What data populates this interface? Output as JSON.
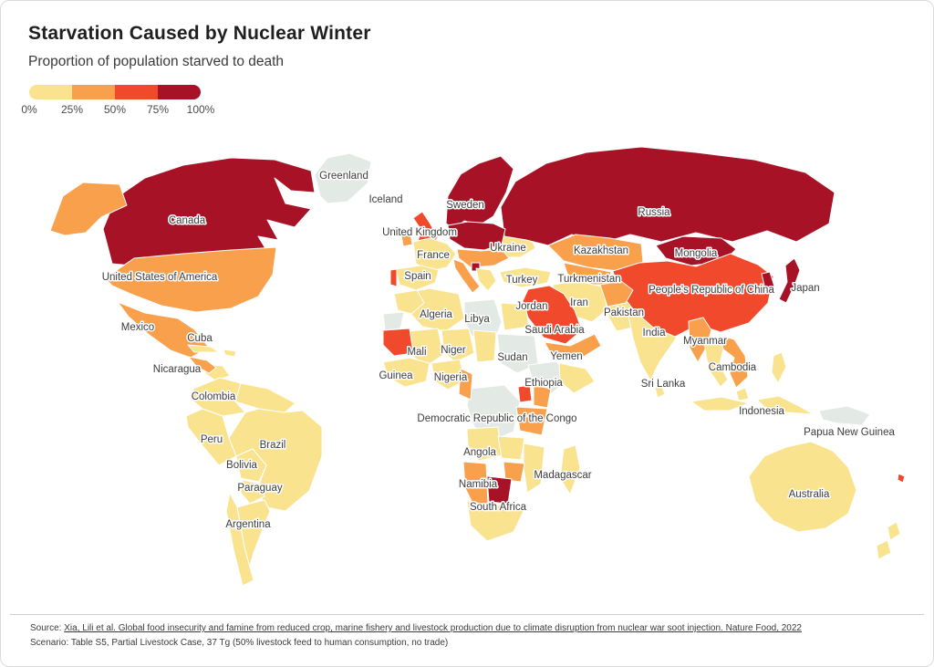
{
  "header": {
    "title": "Starvation Caused by Nuclear Winter",
    "subtitle": "Proportion of population starved to death"
  },
  "legend": {
    "labels": [
      "0%",
      "25%",
      "50%",
      "75%",
      "100%"
    ],
    "colors": [
      "#FAE38F",
      "#F9A04C",
      "#F1492B",
      "#A81226"
    ]
  },
  "footer": {
    "source_prefix": "Source: ",
    "source_link": "Xia, Lili et al. Global food insecurity and famine from reduced crop, marine fishery and livestock production due to climate disruption from nuclear war soot injection. Nature Food, 2022",
    "scenario": "Scenario: Table S5, Partial Livestock Case, 37 Tg (50% livestock feed to human consumption, no trade)"
  },
  "chart_data": {
    "type": "heatmap",
    "subtype": "choropleth-world-map",
    "title": "Starvation Caused by Nuclear Winter",
    "subtitle": "Proportion of population starved to death",
    "unit": "percent of population starved to death",
    "legend_position": "top-left",
    "bins": [
      {
        "range": "0-25%",
        "color": "#FAE38F"
      },
      {
        "range": "25-50%",
        "color": "#F9A04C"
      },
      {
        "range": "50-75%",
        "color": "#F1492B"
      },
      {
        "range": "75-100%",
        "color": "#A81226"
      },
      {
        "range": "no data",
        "color": "#E3EAE5"
      }
    ],
    "countries": [
      {
        "name": "Greenland",
        "bin": "no data",
        "label": [
          376,
          191
        ],
        "polys": [
          "350,214 344,190 358,172 382,167 406,176 402,200 380,220 358,222"
        ]
      },
      {
        "name": "Iceland",
        "bin": "no data",
        "label": [
          422,
          217
        ],
        "polys": []
      },
      {
        "name": "Canada",
        "bin": "75-100%",
        "label": [
          204,
          240
        ],
        "polys": [
          "122,288 112,250 126,216 158,194 200,180 252,172 300,174 340,186 344,210 318,208 300,194 312,222 340,228 322,248 292,240 304,262 282,258 294,278 252,292 208,288 164,292"
        ]
      },
      {
        "name": "United States of America",
        "bin": "25-50%",
        "label": [
          174,
          302
        ],
        "polys": [
          "114,304 146,282 200,277 252,273 302,270 298,300 282,324 252,337 214,341 176,334 142,321 122,312"
        ]
      },
      {
        "name": "Mexico",
        "bin": "25-50%",
        "label": [
          150,
          357
        ],
        "polys": [
          "128,330 158,342 194,348 212,360 228,380 208,391 186,383 160,364 140,346"
        ]
      },
      {
        "name": "Cuba",
        "bin": "0-25%",
        "label": [
          218,
          369
        ],
        "polys": [
          "205,377 230,379 239,385 212,385"
        ]
      },
      {
        "name": "Nicaragua",
        "bin": "0-25%",
        "label": [
          193,
          403
        ],
        "polys": [
          "222,398 243,400 251,411 235,416 224,408"
        ]
      },
      {
        "name": "Colombia",
        "bin": "0-25%",
        "label": [
          233,
          433
        ],
        "polys": [
          "211,425 240,413 263,419 257,439 268,451 243,455 221,447 209,437"
        ]
      },
      {
        "name": "Peru",
        "bin": "0-25%",
        "label": [
          231,
          480
        ],
        "polys": [
          "203,455 221,447 243,455 250,479 258,499 239,509 219,485 205,467"
        ]
      },
      {
        "name": "Brazil",
        "bin": "0-25%",
        "label": [
          298,
          486
        ],
        "polys": [
          "268,451 283,447 311,451 331,449 352,467 352,499 338,537 312,559 291,555 281,535 291,509 276,491 258,499 250,479"
        ]
      },
      {
        "name": "Bolivia",
        "bin": "0-25%",
        "label": [
          264,
          508
        ],
        "polys": [
          "258,499 276,491 291,509 283,527 263,523"
        ]
      },
      {
        "name": "Paraguay",
        "bin": "0-25%",
        "label": [
          284,
          533
        ],
        "polys": [
          "265,525 283,529 289,543 273,551 263,539"
        ]
      },
      {
        "name": "Argentina",
        "bin": "0-25%",
        "label": [
          271,
          573
        ],
        "polys": [
          "259,555 273,551 289,547 295,559 287,579 277,605 269,633 267,599"
        ]
      },
      {
        "name": "Sweden",
        "bin": "75-100%",
        "label": [
          509,
          223
        ],
        "polys": [
          "488,244 490,214 504,190 524,178 548,170 562,184 554,210 540,236 524,246 508,241 498,250"
        ]
      },
      {
        "name": "United Kingdom",
        "bin": "50-75%",
        "label": [
          459,
          253
        ],
        "polys": [
          "452,238 462,231 470,243 479,259 472,271 456,267 461,251"
        ]
      },
      {
        "name": "France",
        "bin": "0-25%",
        "label": [
          474,
          278
        ],
        "polys": [
          "452,264 470,260 489,266 499,277 489,292 470,296 455,288"
        ]
      },
      {
        "name": "Spain",
        "bin": "0-25%",
        "label": [
          457,
          301
        ],
        "polys": [
          "433,294 461,290 480,295 476,309 455,317 437,311"
        ]
      },
      {
        "name": "Ukraine",
        "bin": "0-25%",
        "label": [
          556,
          270
        ],
        "polys": [
          "528,260 552,254 580,258 586,271 569,281 545,281 531,271"
        ]
      },
      {
        "name": "Russia",
        "bin": "75-100%",
        "label": [
          716,
          231
        ],
        "polys": [
          "552,258 548,226 564,198 598,178 642,166 702,160 762,166 826,174 882,188 914,210 908,244 872,264 840,252 802,264 762,254 724,264 690,256 656,266 626,256 600,268 576,262"
        ]
      },
      {
        "name": "Kazakhstan",
        "bin": "25-50%",
        "label": [
          658,
          273
        ],
        "polys": [
          "600,268 630,256 668,260 702,266 704,286 676,296 644,292 617,285"
        ]
      },
      {
        "name": "Mongolia",
        "bin": "75-100%",
        "label": [
          762,
          276
        ],
        "polys": [
          "718,268 748,258 790,260 806,272 792,286 757,290 729,282"
        ]
      },
      {
        "name": "Turkey",
        "bin": "0-25%",
        "label": [
          571,
          305
        ],
        "polys": [
          "547,297 575,292 603,297 599,309 571,314 551,308"
        ]
      },
      {
        "name": "Turkmenistan",
        "bin": "25-50%",
        "label": [
          645,
          304
        ],
        "polys": [
          "617,287 649,293 669,297 665,311 640,311 621,299"
        ]
      },
      {
        "name": "Iran",
        "bin": "0-25%",
        "label": [
          634,
          330
        ],
        "polys": [
          "605,311 632,307 659,313 665,338 648,352 624,344 609,329"
        ]
      },
      {
        "name": "Jordan",
        "bin": "50-75%",
        "label": [
          582,
          334
        ],
        "polys": [
          "574,326 582,324 583,336 575,337"
        ]
      },
      {
        "name": "Saudi Arabia",
        "bin": "50-75%",
        "label": [
          607,
          360
        ],
        "polys": [
          "578,316 601,312 617,321 629,339 637,361 619,376 595,369 578,347 572,329"
        ]
      },
      {
        "name": "Yemen",
        "bin": "25-50%",
        "label": [
          620,
          389
        ],
        "polys": [
          "596,374 624,378 651,365 658,378 634,393 604,389"
        ]
      },
      {
        "name": "Pakistan",
        "bin": "0-25%",
        "label": [
          683,
          341
        ],
        "polys": [
          "663,334 686,330 699,339 692,358 675,362 667,348"
        ]
      },
      {
        "name": "India",
        "bin": "0-25%",
        "label": [
          716,
          363
        ],
        "polys": [
          "687,340 713,333 737,339 749,352 738,373 722,396 712,416 701,396 693,370"
        ]
      },
      {
        "name": "People's Republic of China",
        "bin": "50-75%",
        "label": [
          779,
          316
        ],
        "polys": [
          "671,296 700,287 731,285 762,291 800,277 830,289 847,302 841,331 820,353 789,363 764,355 739,368 714,357 694,339 677,317"
        ]
      },
      {
        "name": "Japan",
        "bin": "75-100%",
        "label": [
          882,
          314
        ],
        "polys": [
          "860,290 870,282 876,295 870,312 861,331 853,327 862,308"
        ]
      },
      {
        "name": "Myanmar",
        "bin": "25-50%",
        "label": [
          772,
          372
        ],
        "polys": [
          "754,351 770,347 779,361 772,382 764,396 755,380"
        ]
      },
      {
        "name": "Cambodia",
        "bin": "25-50%",
        "label": [
          802,
          401
        ],
        "polys": [
          "791,367 804,371 816,389 819,412 806,424 799,408 804,391 791,381"
        ]
      },
      {
        "name": "Sri Lanka",
        "bin": "0-25%",
        "label": [
          726,
          419
        ],
        "polys": [
          "717,424 724,420 728,431 720,435"
        ]
      },
      {
        "name": "Indonesia",
        "bin": "0-25%",
        "label": [
          834,
          449
        ],
        "polys": [
          "757,439 790,434 820,441 799,449 771,449",
          "829,437 853,433 873,443 891,453 862,451 837,445",
          "806,428 816,424 820,436 809,438"
        ]
      },
      {
        "name": "Papua New Guinea",
        "bin": "no data",
        "label": [
          930,
          472
        ],
        "polys": [
          "897,449 928,444 953,453 944,465 917,463 901,459"
        ]
      },
      {
        "name": "Australia",
        "bin": "0-25%",
        "label": [
          886,
          540
        ],
        "polys": [
          "820,521 837,499 861,489 888,483 912,493 929,511 938,536 929,562 904,578 874,582 847,570 827,548"
        ]
      },
      {
        "name": "Algeria",
        "bin": "0-25%",
        "label": [
          477,
          343
        ],
        "polys": [
          "444,320 470,315 502,321 508,348 488,362 462,357 446,339"
        ]
      },
      {
        "name": "Libya",
        "bin": "no data",
        "label": [
          522,
          348
        ],
        "polys": [
          "508,330 541,327 549,352 541,372 516,367 508,349"
        ]
      },
      {
        "name": "Mali",
        "bin": "0-25%",
        "label": [
          456,
          384
        ],
        "polys": [
          "448,362 479,359 485,388 466,400 452,390"
        ]
      },
      {
        "name": "Niger",
        "bin": "0-25%",
        "label": [
          496,
          382
        ],
        "polys": [
          "483,361 513,359 519,386 498,396 486,385"
        ]
      },
      {
        "name": "Guinea",
        "bin": "0-25%",
        "label": [
          433,
          410
        ],
        "polys": [
          "419,396 448,391 470,397 466,417 443,423 425,413"
        ]
      },
      {
        "name": "Nigeria",
        "bin": "0-25%",
        "label": [
          493,
          412
        ],
        "polys": [
          "472,397 503,393 509,416 490,426 476,417"
        ]
      },
      {
        "name": "Sudan",
        "bin": "no data",
        "label": [
          561,
          390
        ],
        "polys": [
          "544,365 585,367 589,398 566,408 548,397"
        ]
      },
      {
        "name": "Ethiopia",
        "bin": "no data",
        "label": [
          595,
          418
        ],
        "polys": [
          "578,399 609,395 623,414 604,430 585,423"
        ]
      },
      {
        "name": "Democratic Republic of the Congo",
        "bin": "no data",
        "label": [
          544,
          457
        ],
        "polys": [
          "515,425 552,421 569,439 562,472 539,482 519,467 511,443"
        ]
      },
      {
        "name": "Angola",
        "bin": "0-25%",
        "label": [
          525,
          494
        ],
        "polys": [
          "511,469 545,467 549,498 524,504 512,487"
        ]
      },
      {
        "name": "Namibia",
        "bin": "25-50%",
        "label": [
          523,
          529
        ],
        "polys": [
          "507,505 532,507 534,552 521,558 509,534"
        ]
      },
      {
        "name": "South Africa",
        "bin": "0-25%",
        "label": [
          545,
          554
        ],
        "polys": [
          "511,548 536,553 561,551 573,559 562,582 533,592 515,575"
        ]
      },
      {
        "name": "Madagascar",
        "bin": "0-25%",
        "label": [
          616,
          519
        ],
        "polys": [
          "617,491 630,487 635,512 624,541 613,523"
        ]
      }
    ],
    "unlabeled_regions": [
      {
        "name": "Alaska (USA)",
        "bin": "25-50%",
        "polys": [
          "54,252 68,214 90,199 130,201 138,224 110,237 93,254 70,257"
        ]
      },
      {
        "name": "Central America",
        "bin": "25-50%",
        "polys": [
          "206,390 226,394 236,402 228,408 214,400"
        ]
      },
      {
        "name": "Hispaniola",
        "bin": "0-25%",
        "polys": [
          "244,382 258,384 256,390 246,388"
        ]
      },
      {
        "name": "Venezuela and Guyanas",
        "bin": "0-25%",
        "polys": [
          "263,419 293,425 323,441 311,451 283,447 257,439"
        ]
      },
      {
        "name": "Chile",
        "bin": "0-25%",
        "polys": [
          "251,539 259,555 267,599 277,635 265,641 255,601 247,559"
        ]
      },
      {
        "name": "Ireland",
        "bin": "25-50%",
        "polys": [
          "439,257 449,255 451,267 441,269"
        ]
      },
      {
        "name": "Portugal",
        "bin": "50-75%",
        "polys": [
          "427,295 434,294 434,313 427,311"
        ]
      },
      {
        "name": "Germany Poland Belarus",
        "bin": "75-100%",
        "polys": [
          "490,246 512,242 540,244 553,250 549,267 530,273 508,271 492,261"
        ]
      },
      {
        "name": "Central Europe",
        "bin": "25-50%",
        "polys": [
          "500,272 526,274 549,272 557,282 541,290 515,292 502,282"
        ]
      },
      {
        "name": "Italy",
        "bin": "25-50%",
        "polys": [
          "496,283 507,287 516,301 525,313 517,320 506,305 498,293"
        ]
      },
      {
        "name": "Serbia",
        "bin": "75-100%",
        "polys": [
          "516,287 525,287 525,296 516,296"
        ]
      },
      {
        "name": "Greece and Balkans",
        "bin": "0-25%",
        "polys": [
          "521,293 537,295 543,307 534,318 524,307"
        ]
      },
      {
        "name": "Korea",
        "bin": "75-100%",
        "polys": [
          "834,299 843,297 848,313 838,316"
        ]
      },
      {
        "name": "Afghanistan",
        "bin": "25-50%",
        "polys": [
          "657,311 680,307 693,317 685,331 665,335"
        ]
      },
      {
        "name": "Thailand",
        "bin": "0-25%",
        "polys": [
          "771,371 784,367 792,381 788,399 797,415 789,423 778,407 773,389"
        ]
      },
      {
        "name": "Philippines",
        "bin": "0-25%",
        "polys": [
          "847,389 856,385 861,401 852,419 845,407"
        ]
      },
      {
        "name": "New Zealand",
        "bin": "0-25%",
        "polys": [
          "972,577 982,571 986,584 975,591",
          "960,597 972,591 976,605 962,612"
        ]
      },
      {
        "name": "New Caledonia",
        "bin": "50-75%",
        "polys": [
          "984,518 991,521 989,528 983,525"
        ]
      },
      {
        "name": "Morocco",
        "bin": "0-25%",
        "polys": [
          "431,321 456,317 464,331 450,343 435,339"
        ]
      },
      {
        "name": "Western Sahara",
        "bin": "no data",
        "polys": [
          "419,343 442,341 438,359 421,361"
        ]
      },
      {
        "name": "Mauritania",
        "bin": "50-75%",
        "polys": [
          "419,361 448,359 452,386 431,389 419,377"
        ]
      },
      {
        "name": "Egypt",
        "bin": "0-25%",
        "polys": [
          "548,331 575,333 579,357 552,361"
        ]
      },
      {
        "name": "Chad",
        "bin": "0-25%",
        "polys": [
          "518,361 543,363 541,394 522,396"
        ]
      },
      {
        "name": "Somalia",
        "bin": "0-25%",
        "polys": [
          "612,397 641,403 651,417 628,430 613,417"
        ]
      },
      {
        "name": "Cameroon Gabon",
        "bin": "25-50%",
        "polys": [
          "504,403 517,409 515,437 502,431"
        ]
      },
      {
        "name": "Uganda",
        "bin": "50-75%",
        "polys": [
          "567,423 580,421 582,438 569,440"
        ]
      },
      {
        "name": "Kenya",
        "bin": "25-50%",
        "polys": [
          "584,421 603,425 599,446 584,443"
        ]
      },
      {
        "name": "Tanzania",
        "bin": "25-50%",
        "polys": [
          "565,445 599,447 593,476 569,471"
        ]
      },
      {
        "name": "Zambia",
        "bin": "0-25%",
        "polys": [
          "545,477 574,479 570,503 549,501"
        ]
      },
      {
        "name": "Mozambique",
        "bin": "0-25%",
        "polys": [
          "573,485 596,489 592,529 577,539 573,511"
        ]
      },
      {
        "name": "Zimbabwe",
        "bin": "25-50%",
        "polys": [
          "551,505 574,507 570,527 553,525"
        ]
      },
      {
        "name": "Botswana",
        "bin": "75-100%",
        "polys": [
          "533,521 560,524 556,551 535,549"
        ]
      }
    ]
  },
  "map_style": {
    "no_data_color": "#E3EAE5",
    "border_color": "#FFFFFF",
    "label_color": "#3C3C3C",
    "ocean_color": "#FFFFFF"
  }
}
